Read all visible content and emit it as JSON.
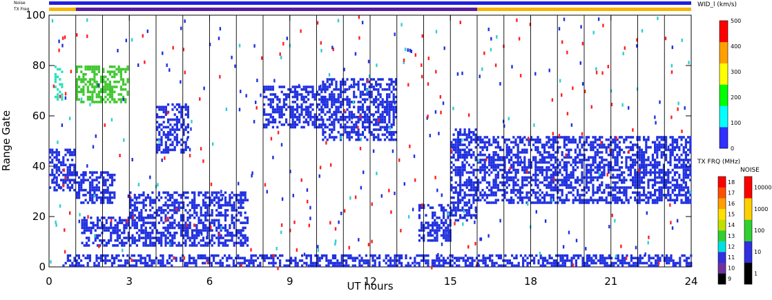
{
  "chart_data": {
    "type": "heatmap",
    "title": "",
    "xlabel": "UT hours",
    "ylabel": "Range Gate",
    "xlim": [
      0,
      24
    ],
    "ylim": [
      0,
      100
    ],
    "xticks": [
      "0",
      "3",
      "6",
      "9",
      "12",
      "15",
      "18",
      "21",
      "24"
    ],
    "yticks": [
      "0",
      "20",
      "40",
      "60",
      "80",
      "100"
    ],
    "scan_boundaries_hours": [
      1,
      2,
      3,
      4,
      5,
      6,
      7,
      8,
      9,
      10,
      11,
      12,
      13,
      14,
      15,
      16,
      17,
      18,
      19,
      20,
      21,
      22,
      23
    ],
    "status_bars": {
      "noise_label": "Noise",
      "txfreq_label": "TX Freq",
      "noise_color": "#2020e0",
      "txfreq_segments": [
        {
          "from": 0,
          "to": 1,
          "color": "#f5b400"
        },
        {
          "from": 1,
          "to": 16,
          "color": "#5a1ea0"
        },
        {
          "from": 16,
          "to": 24,
          "color": "#f5b400"
        }
      ]
    },
    "series": [
      {
        "region": "echo band",
        "x_range": [
          0,
          1
        ],
        "gate_range": [
          30,
          47
        ],
        "color": "#2030e0"
      },
      {
        "region": "echo band",
        "x_range": [
          0.2,
          0.5
        ],
        "gate_range": [
          66,
          80
        ],
        "color": "#30e0c0"
      },
      {
        "region": "echo band",
        "x_range": [
          1,
          3
        ],
        "gate_range": [
          65,
          80
        ],
        "color": "#40c830"
      },
      {
        "region": "echo band",
        "x_range": [
          1,
          2.5
        ],
        "gate_range": [
          25,
          38
        ],
        "color": "#2030e0"
      },
      {
        "region": "echo band",
        "x_range": [
          1.2,
          3
        ],
        "gate_range": [
          8,
          20
        ],
        "color": "#2030e0"
      },
      {
        "region": "echo band",
        "x_range": [
          3,
          7.5
        ],
        "gate_range": [
          8,
          30
        ],
        "color": "#2030e0"
      },
      {
        "region": "echo band",
        "x_range": [
          4,
          5.2
        ],
        "gate_range": [
          45,
          65
        ],
        "color": "#2030e0"
      },
      {
        "region": "echo band",
        "x_range": [
          8,
          10.2
        ],
        "gate_range": [
          55,
          72
        ],
        "color": "#2030e0"
      },
      {
        "region": "echo band",
        "x_range": [
          10.2,
          13
        ],
        "gate_range": [
          50,
          75
        ],
        "color": "#2030e0"
      },
      {
        "region": "echo band",
        "x_range": [
          13.8,
          15
        ],
        "gate_range": [
          10,
          25
        ],
        "color": "#2030e0"
      },
      {
        "region": "echo band",
        "x_range": [
          15,
          16
        ],
        "gate_range": [
          18,
          55
        ],
        "color": "#2030e0"
      },
      {
        "region": "echo band",
        "x_range": [
          16,
          24
        ],
        "gate_range": [
          25,
          52
        ],
        "color": "#2030e0"
      },
      {
        "region": "echo band",
        "x_range": [
          0.5,
          24
        ],
        "gate_range": [
          0,
          5
        ],
        "color": "#2030e0"
      }
    ],
    "colorbars": [
      {
        "title": "WID_l (km/s)",
        "ticks": [
          "0",
          "100",
          "200",
          "300",
          "400",
          "500"
        ],
        "colors": [
          "#3030ff",
          "#00ffff",
          "#00ff00",
          "#ffff00",
          "#ffa000",
          "#ff0000"
        ]
      },
      {
        "title": "TX FRQ (MHz)",
        "ticks": [
          "9",
          "10",
          "11",
          "12",
          "13",
          "14",
          "15",
          "16",
          "17",
          "18"
        ],
        "colors": [
          "#000000",
          "#7030a0",
          "#3030e0",
          "#00e0e0",
          "#30d030",
          "#c0e000",
          "#ffe000",
          "#ffa000",
          "#ff5000",
          "#ff0000"
        ]
      },
      {
        "title": "NOISE",
        "ticks": [
          "1",
          "10",
          "100",
          "1000",
          "10000"
        ],
        "colors": [
          "#000000",
          "#3030e0",
          "#30d030",
          "#ffd000",
          "#ff0000"
        ]
      }
    ]
  }
}
